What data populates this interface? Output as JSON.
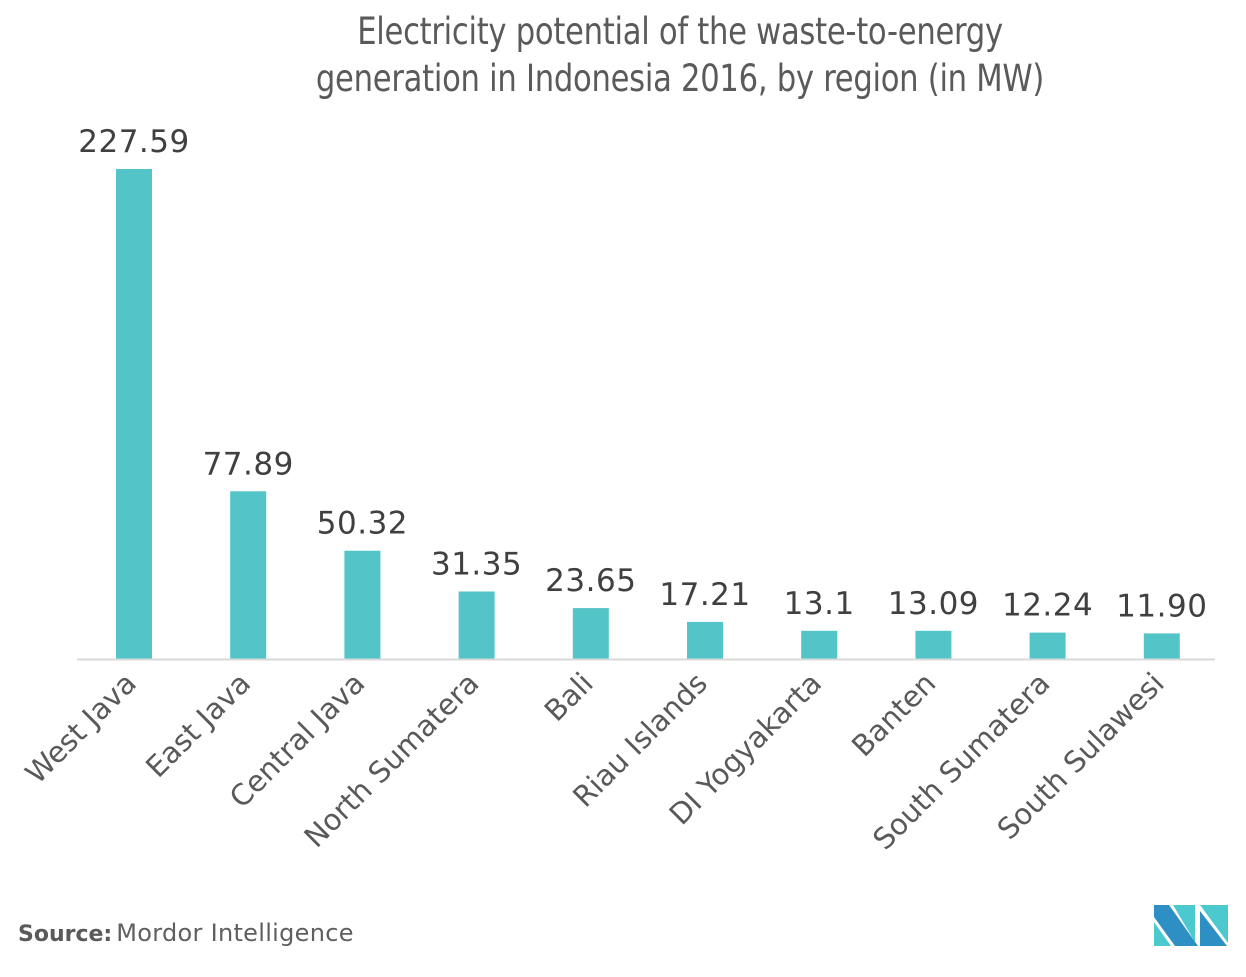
{
  "header": {
    "title_line1": "Electricity potential of the waste-to-energy",
    "title_line2": "generation in Indonesia 2016, by region (in MW)"
  },
  "footer": {
    "source_key": "Source:",
    "source_value": "Mordor Intelligence",
    "logo_icon": "mordor-intelligence-logo-icon"
  },
  "colors": {
    "bar": "#53C5C8",
    "axis": "#D9D9D9",
    "logo_dark": "#2E8FC4",
    "logo_light": "#4CC9CF"
  },
  "chart_data": {
    "type": "bar",
    "title": "Electricity potential of the waste-to-energy generation in Indonesia 2016, by region (in MW)",
    "xlabel": "",
    "ylabel": "",
    "categories": [
      "West Java",
      "East Java",
      "Central Java",
      "North Sumatera",
      "Bali",
      "Riau Islands",
      "DI Yogyakarta",
      "Banten",
      "South Sumatera",
      "South Sulawesi"
    ],
    "values": [
      227.59,
      77.89,
      50.32,
      31.35,
      23.65,
      17.21,
      13.1,
      13.09,
      12.24,
      11.9
    ],
    "value_labels": [
      "227.59",
      "77.89",
      "50.32",
      "31.35",
      "23.65",
      "17.21",
      "13.1",
      "13.09",
      "12.24",
      "11.90"
    ],
    "ylim": [
      0,
      227.59
    ],
    "grid": false,
    "legend": "none",
    "x_tick_rotation_deg": -45
  }
}
